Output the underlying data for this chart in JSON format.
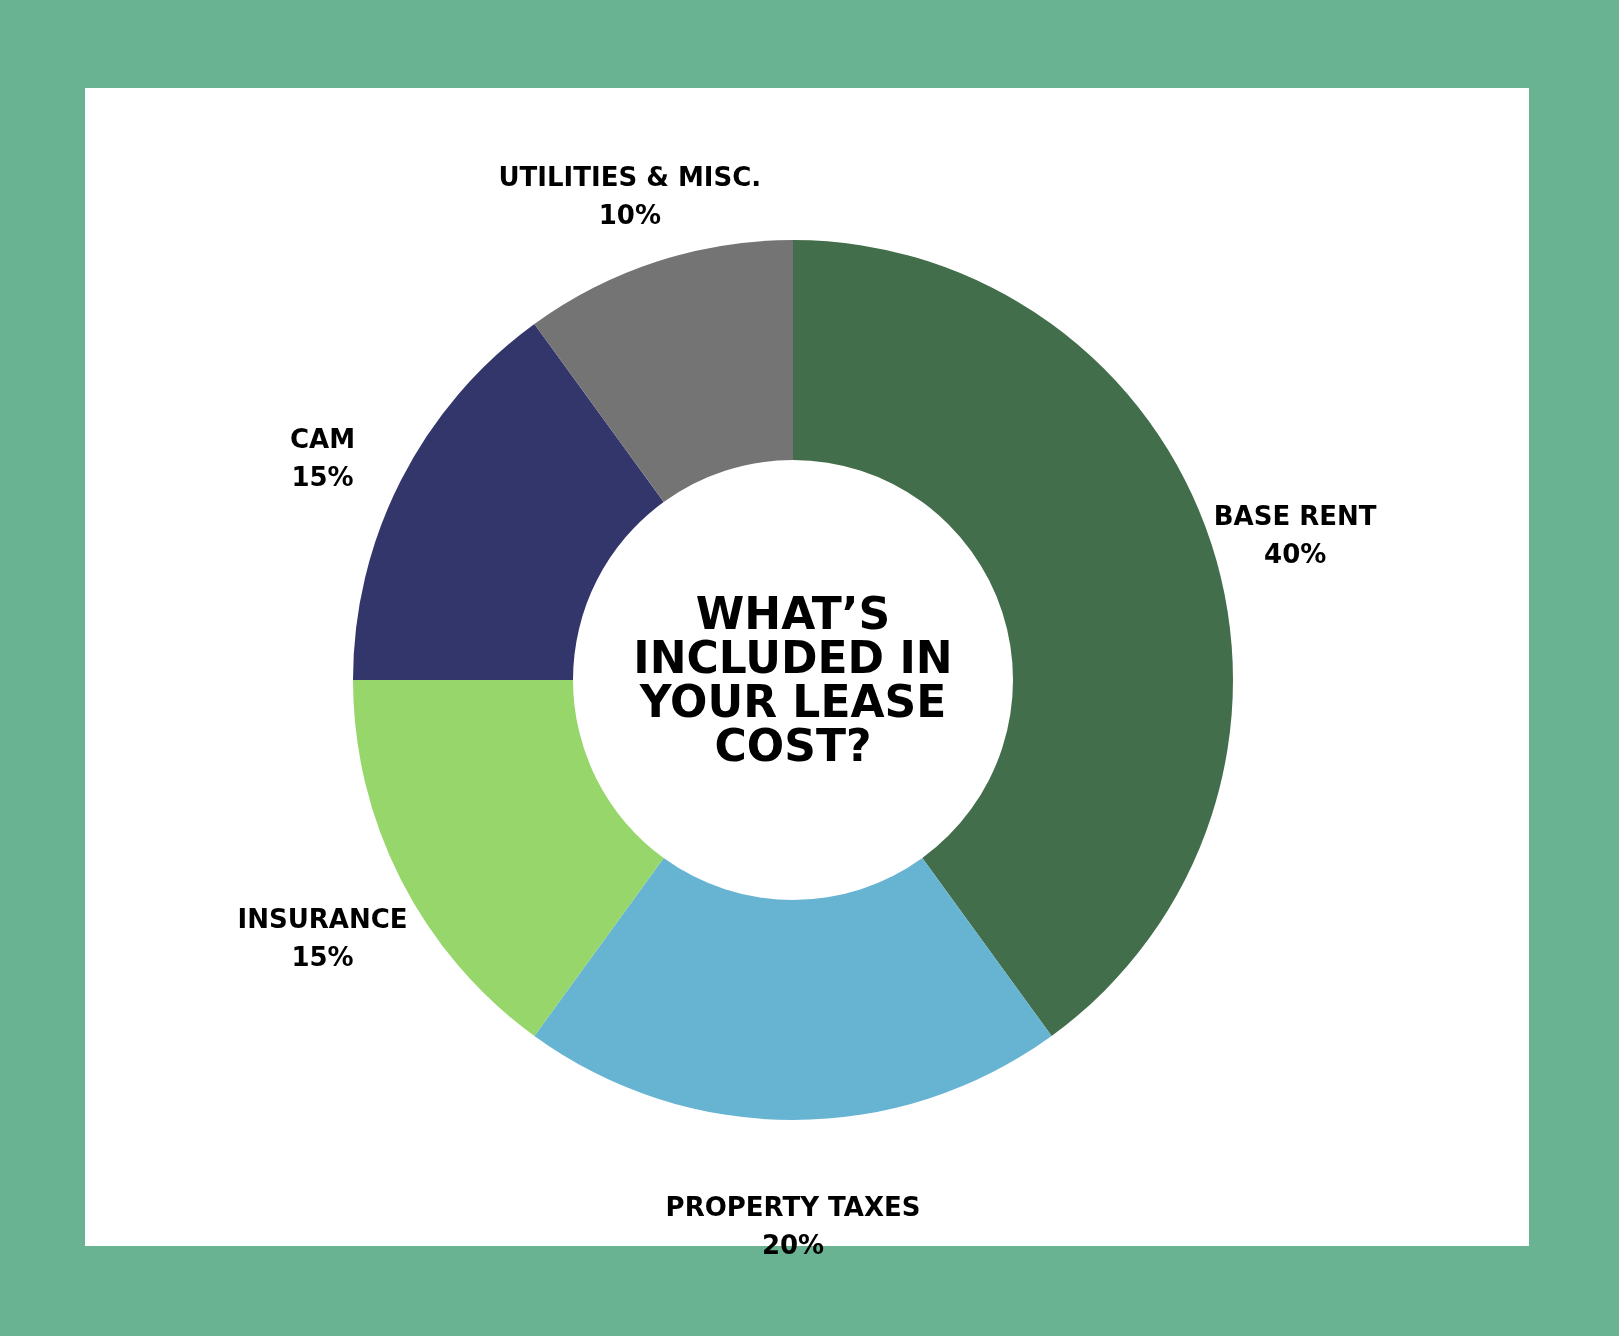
{
  "chart_data": {
    "type": "donut",
    "title": "WHAT’S INCLUDED IN YOUR LEASE COST?",
    "categories": [
      "BASE RENT",
      "PROPERTY TAXES",
      "INSURANCE",
      "CAM",
      "UTILITIES & MISC."
    ],
    "values": [
      40,
      20,
      15,
      15,
      10
    ],
    "value_labels": [
      "40%",
      "20%",
      "15%",
      "15%",
      "10%"
    ],
    "colors": [
      "#436e4c",
      "#67b4d2",
      "#97d66b",
      "#33366a",
      "#747474"
    ]
  }
}
